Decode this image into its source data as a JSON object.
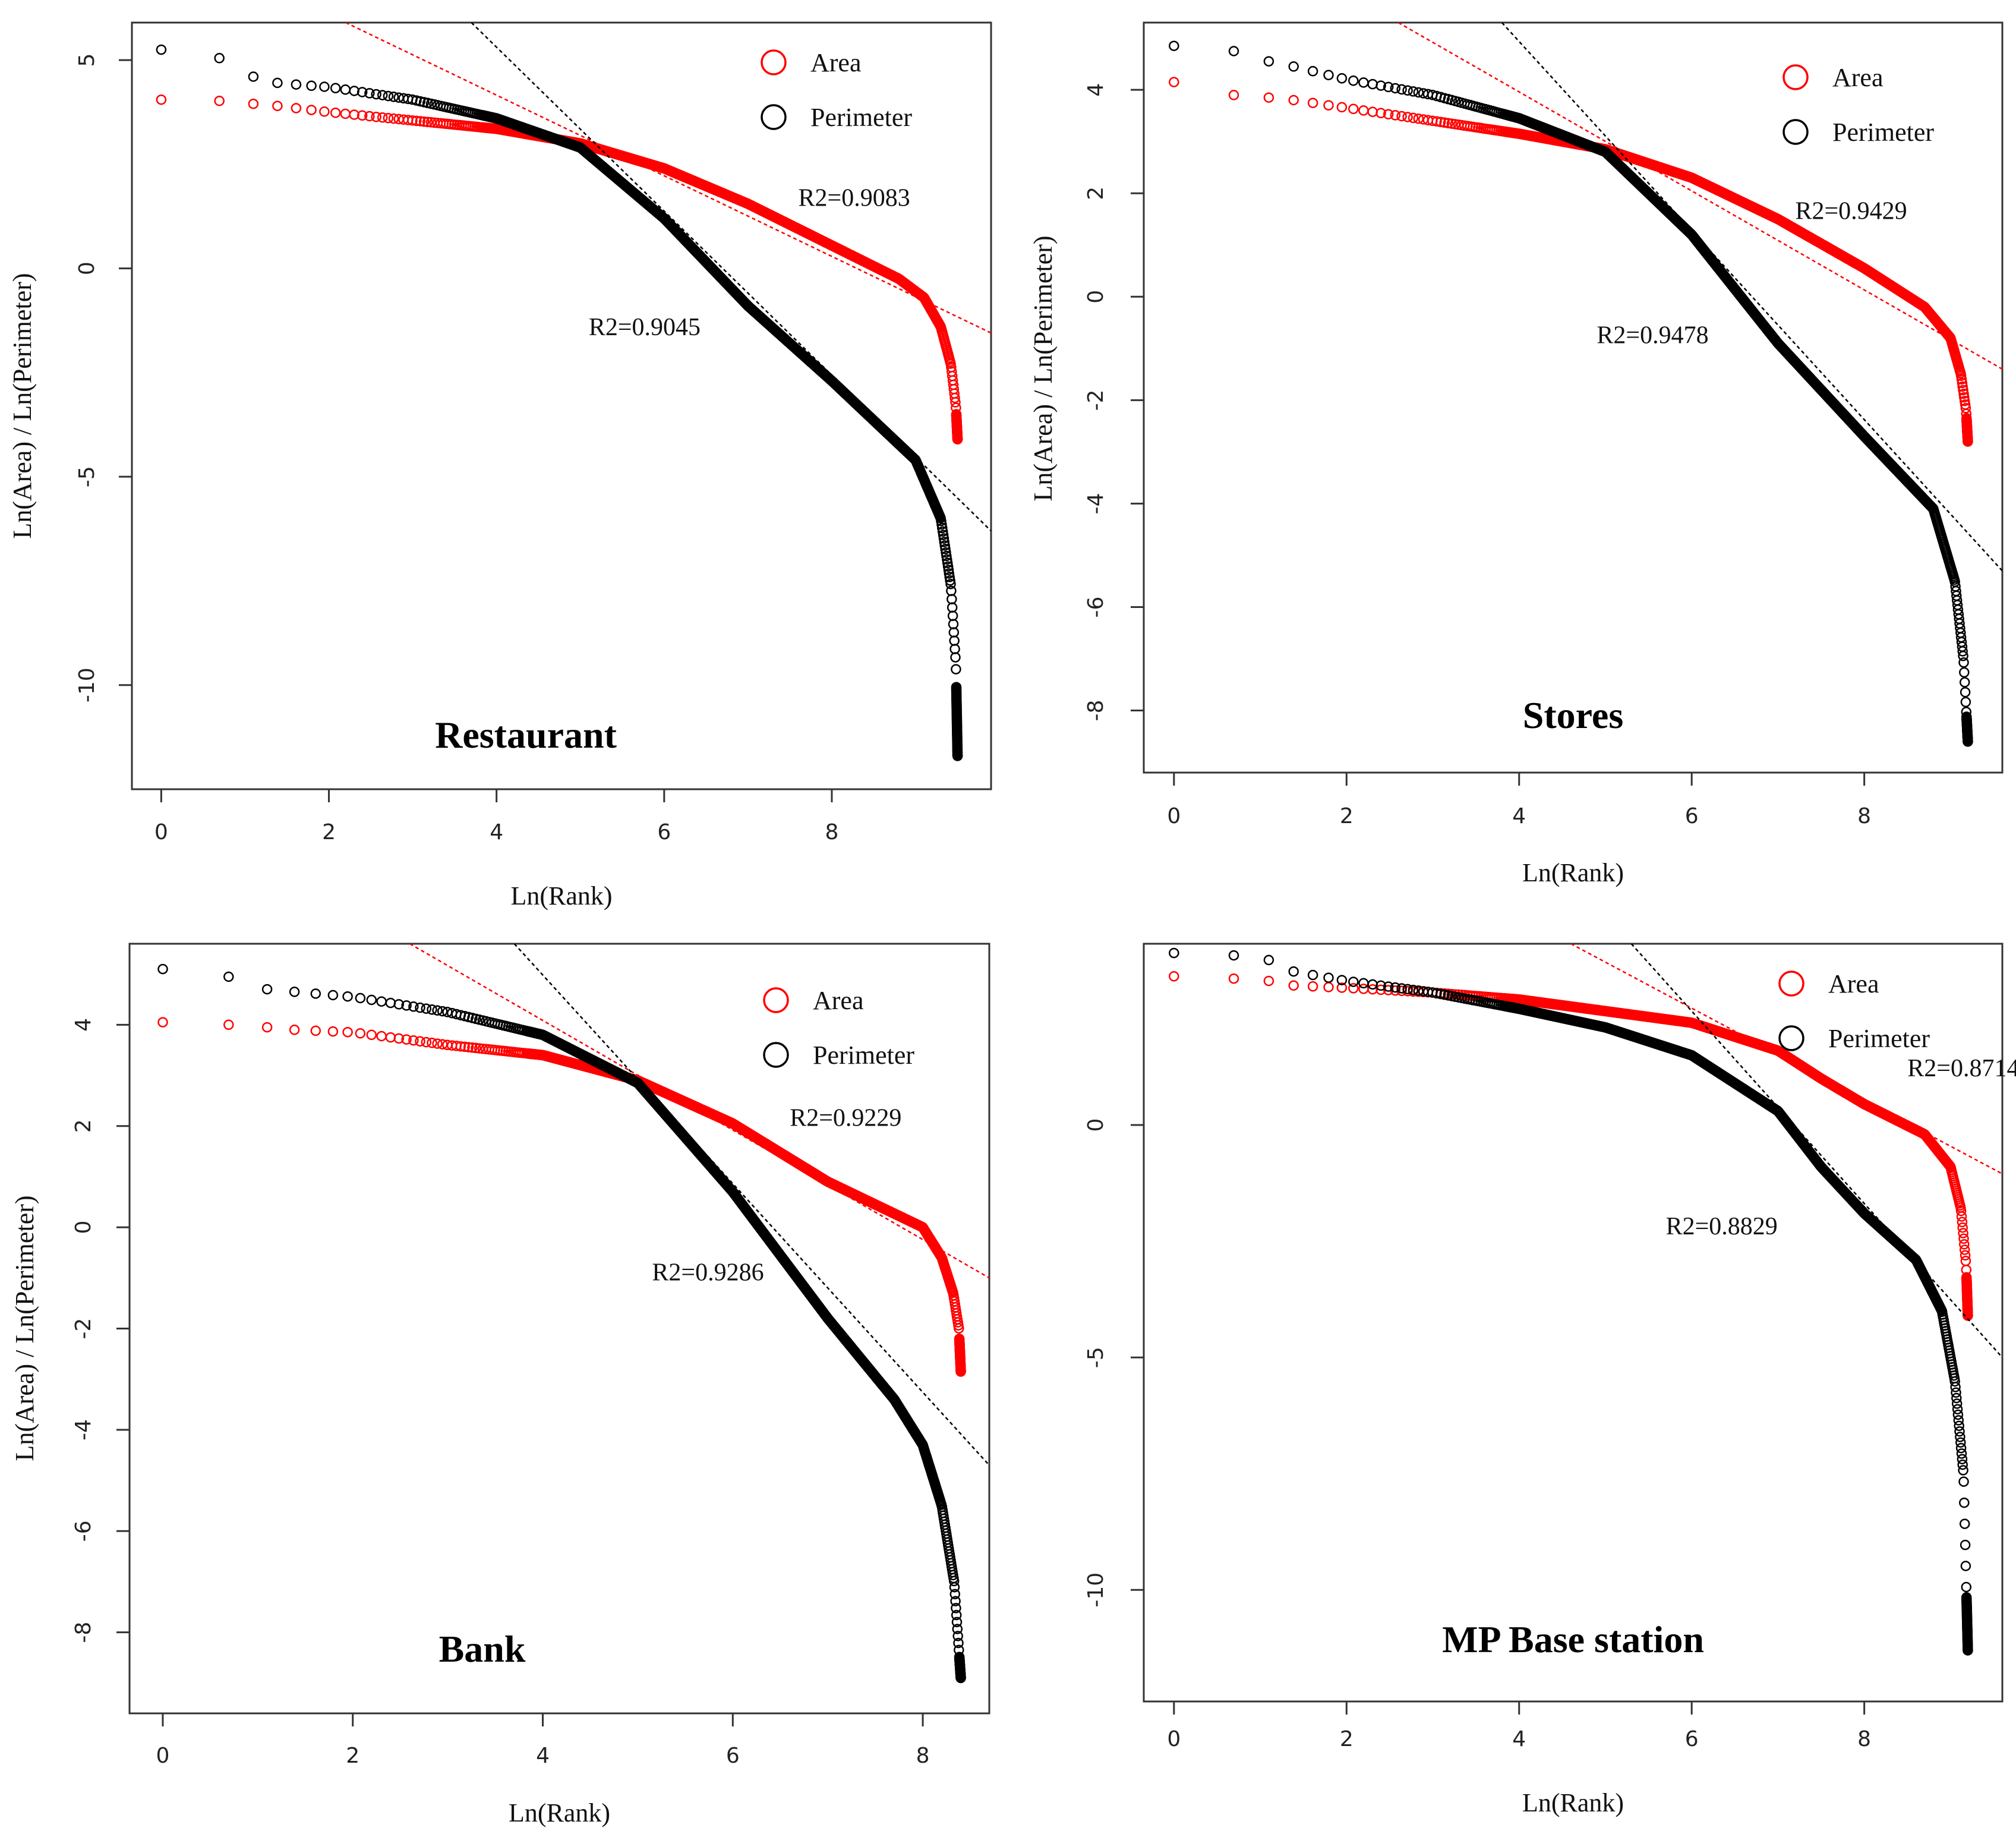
{
  "colors": {
    "area": "#ff0000",
    "perimeter": "#000000"
  },
  "chart_data": [
    {
      "type": "scatter",
      "title": "Restaurant",
      "xlabel": "Ln(Rank)",
      "ylabel": "Ln(Area) / Ln(Perimeter)",
      "xlim": [
        -0.35,
        9.9
      ],
      "ylim": [
        -12.5,
        5.9
      ],
      "xticks": [
        0,
        2,
        4,
        6,
        8
      ],
      "yticks": [
        5,
        0,
        -5,
        -10
      ],
      "x_end": 9.5,
      "legend": [
        {
          "name": "Area",
          "color": "#ff0000"
        },
        {
          "name": "Perimeter",
          "color": "#000000"
        }
      ],
      "legend_position": "top-right",
      "series": [
        {
          "name": "Area",
          "color": "#ff0000",
          "knots": [
            [
              0,
              4.05
            ],
            [
              0.69,
              4.02
            ],
            [
              1.1,
              3.95
            ],
            [
              1.39,
              3.9
            ],
            [
              2,
              3.75
            ],
            [
              3,
              3.55
            ],
            [
              4,
              3.35
            ],
            [
              5,
              3.0
            ],
            [
              6,
              2.4
            ],
            [
              7,
              1.55
            ],
            [
              8,
              0.55
            ],
            [
              8.8,
              -0.25
            ],
            [
              9.1,
              -0.7
            ],
            [
              9.3,
              -1.4
            ],
            [
              9.42,
              -2.3
            ],
            [
              9.48,
              -3.3
            ],
            [
              9.5,
              -4.1
            ]
          ],
          "fit": {
            "x1": 2.2,
            "y1": 5.9,
            "x2": 9.9,
            "y2": -1.55
          },
          "r2_label": "R2=0.9083",
          "r2_at": [
            7.6,
            1.5
          ]
        },
        {
          "name": "Perimeter",
          "color": "#000000",
          "knots": [
            [
              0,
              5.25
            ],
            [
              0.69,
              5.05
            ],
            [
              1.1,
              4.6
            ],
            [
              1.39,
              4.45
            ],
            [
              2,
              4.35
            ],
            [
              3,
              4.05
            ],
            [
              4,
              3.6
            ],
            [
              5,
              2.9
            ],
            [
              6,
              1.2
            ],
            [
              7,
              -0.9
            ],
            [
              8,
              -2.7
            ],
            [
              9,
              -4.6
            ],
            [
              9.3,
              -6.0
            ],
            [
              9.42,
              -7.6
            ],
            [
              9.48,
              -9.5
            ],
            [
              9.5,
              -11.7
            ]
          ],
          "fit": {
            "x1": 3.7,
            "y1": 5.9,
            "x2": 9.9,
            "y2": -6.3
          },
          "r2_label": "R2=0.9045",
          "r2_at": [
            5.1,
            -1.6
          ]
        }
      ]
    },
    {
      "type": "scatter",
      "title": "Stores",
      "xlabel": "Ln(Rank)",
      "ylabel": "Ln(Area) / Ln(Perimeter)",
      "xlim": [
        -0.35,
        9.6
      ],
      "ylim": [
        -9.2,
        5.3
      ],
      "xticks": [
        0,
        2,
        4,
        6,
        8
      ],
      "yticks": [
        4,
        2,
        0,
        -2,
        -4,
        -6,
        -8
      ],
      "x_end": 9.2,
      "legend": [
        {
          "name": "Area",
          "color": "#ff0000"
        },
        {
          "name": "Perimeter",
          "color": "#000000"
        }
      ],
      "legend_position": "top-right",
      "series": [
        {
          "name": "Area",
          "color": "#ff0000",
          "knots": [
            [
              0,
              4.15
            ],
            [
              0.69,
              3.9
            ],
            [
              1.1,
              3.85
            ],
            [
              1.39,
              3.8
            ],
            [
              2,
              3.65
            ],
            [
              3,
              3.4
            ],
            [
              4,
              3.15
            ],
            [
              5,
              2.85
            ],
            [
              6,
              2.3
            ],
            [
              7,
              1.5
            ],
            [
              8,
              0.55
            ],
            [
              8.7,
              -0.2
            ],
            [
              9.0,
              -0.8
            ],
            [
              9.12,
              -1.5
            ],
            [
              9.18,
              -2.2
            ],
            [
              9.2,
              -2.8
            ]
          ],
          "fit": {
            "x1": 2.6,
            "y1": 5.3,
            "x2": 9.6,
            "y2": -1.4
          },
          "r2_label": "R2=0.9429",
          "r2_at": [
            7.2,
            1.5
          ]
        },
        {
          "name": "Perimeter",
          "color": "#000000",
          "knots": [
            [
              0,
              4.85
            ],
            [
              0.69,
              4.75
            ],
            [
              1.1,
              4.55
            ],
            [
              1.39,
              4.45
            ],
            [
              2,
              4.2
            ],
            [
              3,
              3.9
            ],
            [
              4,
              3.45
            ],
            [
              5,
              2.8
            ],
            [
              6,
              1.2
            ],
            [
              7,
              -0.9
            ],
            [
              8,
              -2.7
            ],
            [
              8.8,
              -4.1
            ],
            [
              9.05,
              -5.5
            ],
            [
              9.15,
              -7.0
            ],
            [
              9.2,
              -8.6
            ]
          ],
          "fit": {
            "x1": 3.8,
            "y1": 5.3,
            "x2": 9.6,
            "y2": -5.3
          },
          "r2_label": "R2=0.9478",
          "r2_at": [
            4.9,
            -0.9
          ]
        }
      ]
    },
    {
      "type": "scatter",
      "title": "Bank",
      "xlabel": "Ln(Rank)",
      "ylabel": "Ln(Area) / Ln(Perimeter)",
      "xlim": [
        -0.35,
        8.7
      ],
      "ylim": [
        -9.6,
        5.6
      ],
      "xticks": [
        0,
        2,
        4,
        6,
        8
      ],
      "yticks": [
        4,
        2,
        0,
        -2,
        -4,
        -6,
        -8
      ],
      "x_end": 8.4,
      "legend": [
        {
          "name": "Area",
          "color": "#ff0000"
        },
        {
          "name": "Perimeter",
          "color": "#000000"
        }
      ],
      "legend_position": "top-right",
      "series": [
        {
          "name": "Area",
          "color": "#ff0000",
          "knots": [
            [
              0,
              4.05
            ],
            [
              0.69,
              4.0
            ],
            [
              1.1,
              3.95
            ],
            [
              1.39,
              3.9
            ],
            [
              2,
              3.85
            ],
            [
              3,
              3.6
            ],
            [
              4,
              3.4
            ],
            [
              5,
              2.9
            ],
            [
              6,
              2.05
            ],
            [
              7,
              0.9
            ],
            [
              8,
              0.0
            ],
            [
              8.2,
              -0.6
            ],
            [
              8.32,
              -1.3
            ],
            [
              8.38,
              -2.0
            ],
            [
              8.4,
              -2.85
            ]
          ],
          "fit": {
            "x1": 2.6,
            "y1": 5.6,
            "x2": 8.7,
            "y2": -1.0
          },
          "r2_label": "R2=0.9229",
          "r2_at": [
            6.6,
            2.0
          ]
        },
        {
          "name": "Perimeter",
          "color": "#000000",
          "knots": [
            [
              0,
              5.1
            ],
            [
              0.69,
              4.95
            ],
            [
              1.1,
              4.7
            ],
            [
              1.39,
              4.65
            ],
            [
              2,
              4.55
            ],
            [
              3,
              4.25
            ],
            [
              4,
              3.8
            ],
            [
              5,
              2.85
            ],
            [
              6,
              0.7
            ],
            [
              7,
              -1.8
            ],
            [
              7.7,
              -3.4
            ],
            [
              8.0,
              -4.3
            ],
            [
              8.2,
              -5.5
            ],
            [
              8.33,
              -7.0
            ],
            [
              8.4,
              -8.9
            ]
          ],
          "fit": {
            "x1": 3.7,
            "y1": 5.6,
            "x2": 8.7,
            "y2": -4.7
          },
          "r2_label": "R2=0.9286",
          "r2_at": [
            5.15,
            -1.05
          ]
        }
      ]
    },
    {
      "type": "scatter",
      "title": "MP Base station",
      "xlabel": "Ln(Rank)",
      "ylabel": "",
      "xlim": [
        -0.35,
        9.6
      ],
      "ylim": [
        -12.4,
        3.9
      ],
      "xticks": [
        0,
        2,
        4,
        6,
        8
      ],
      "yticks": [
        0,
        -5,
        -10
      ],
      "x_end": 9.2,
      "legend": [
        {
          "name": "Area",
          "color": "#ff0000"
        },
        {
          "name": "Perimeter",
          "color": "#000000"
        }
      ],
      "legend_position": "top-right",
      "series": [
        {
          "name": "Area",
          "color": "#ff0000",
          "knots": [
            [
              0,
              3.2
            ],
            [
              0.69,
              3.15
            ],
            [
              1.1,
              3.1
            ],
            [
              1.39,
              3.0
            ],
            [
              2,
              2.95
            ],
            [
              3,
              2.85
            ],
            [
              4,
              2.7
            ],
            [
              5,
              2.45
            ],
            [
              6,
              2.2
            ],
            [
              7,
              1.6
            ],
            [
              7.5,
              1.0
            ],
            [
              8,
              0.45
            ],
            [
              8.7,
              -0.2
            ],
            [
              9.0,
              -0.9
            ],
            [
              9.12,
              -1.8
            ],
            [
              9.18,
              -3.0
            ],
            [
              9.2,
              -4.1
            ]
          ],
          "fit": {
            "x1": 4.6,
            "y1": 3.9,
            "x2": 9.6,
            "y2": -1.05
          },
          "r2_label": "R2=0.8714",
          "r2_at": [
            8.5,
            1.05
          ]
        },
        {
          "name": "Perimeter",
          "color": "#000000",
          "knots": [
            [
              0,
              3.7
            ],
            [
              0.69,
              3.65
            ],
            [
              1.1,
              3.55
            ],
            [
              1.39,
              3.3
            ],
            [
              2,
              3.1
            ],
            [
              3,
              2.85
            ],
            [
              4,
              2.5
            ],
            [
              5,
              2.1
            ],
            [
              6,
              1.5
            ],
            [
              7,
              0.3
            ],
            [
              7.5,
              -0.9
            ],
            [
              8,
              -1.9
            ],
            [
              8.6,
              -2.9
            ],
            [
              8.9,
              -4.0
            ],
            [
              9.05,
              -5.5
            ],
            [
              9.15,
              -7.5
            ],
            [
              9.2,
              -11.3
            ]
          ],
          "fit": {
            "x1": 5.3,
            "y1": 3.9,
            "x2": 9.6,
            "y2": -5.0
          },
          "r2_label": "R2=0.8829",
          "r2_at": [
            5.7,
            -2.35
          ]
        }
      ]
    }
  ]
}
